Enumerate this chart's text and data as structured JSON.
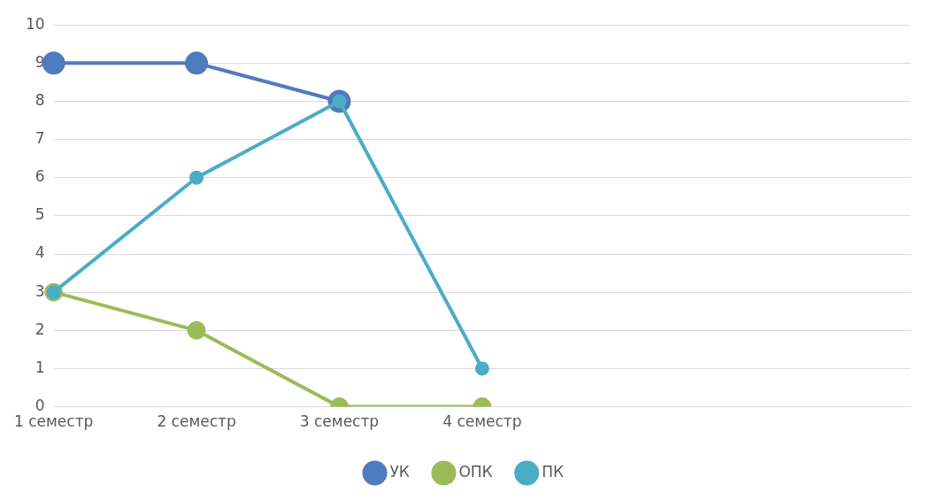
{
  "chart_data": {
    "type": "line",
    "categories": [
      "1 семестр",
      "2 семестр",
      "3 семестр",
      "4 семестр",
      null,
      null,
      null
    ],
    "series": [
      {
        "name": "УК",
        "color": "#4f7bbf",
        "values": [
          9,
          9,
          8,
          null,
          null,
          null,
          null
        ]
      },
      {
        "name": "ОПК",
        "color": "#9bbb59",
        "values": [
          3,
          2,
          0,
          0,
          null,
          null,
          null
        ]
      },
      {
        "name": "ПК",
        "color": "#4bacc6",
        "values": [
          3,
          6,
          8,
          1,
          null,
          null,
          null
        ]
      }
    ],
    "ylim": [
      0,
      10
    ],
    "yticks": [
      0,
      1,
      2,
      3,
      4,
      5,
      6,
      7,
      8,
      9,
      10
    ],
    "grid": "y",
    "legend": "bottom",
    "marker": "circle",
    "line_style": "solid"
  }
}
